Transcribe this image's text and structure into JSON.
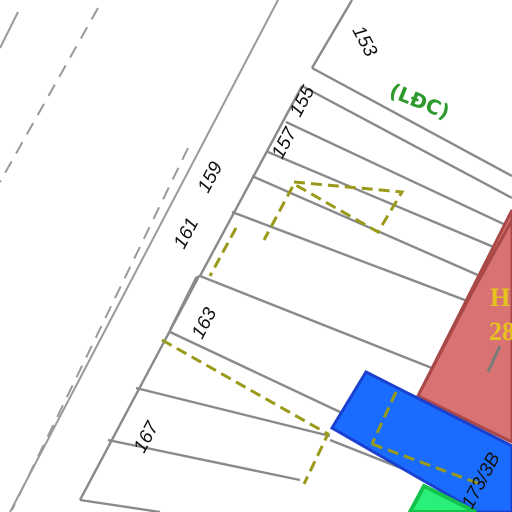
{
  "map": {
    "colors": {
      "background": "#ffffff",
      "parcel_line": "#8a8a8a",
      "road_edge": "#9a9a9a",
      "dashed_boundary": "#9a9a1a",
      "ldc_text": "#2e9a2e",
      "pink_building_fill": "#d97373",
      "pink_building_stroke": "#a94848",
      "pink_building_text": "#e6c21e",
      "blue_building_fill": "#1a6cff",
      "blue_building_stroke": "#1a40d0",
      "green_building_fill": "#2af07a",
      "green_building_stroke": "#12c24a"
    },
    "labels": {
      "lot_153": "153",
      "lot_155": "155",
      "lot_157": "157",
      "lot_159": "159",
      "lot_161": "161",
      "lot_163": "163",
      "lot_167": "167",
      "lot_173_3b": "173/3B",
      "ldc_note": "(LĐC)",
      "pink_building_line1": "H",
      "pink_building_line2": "28"
    }
  }
}
